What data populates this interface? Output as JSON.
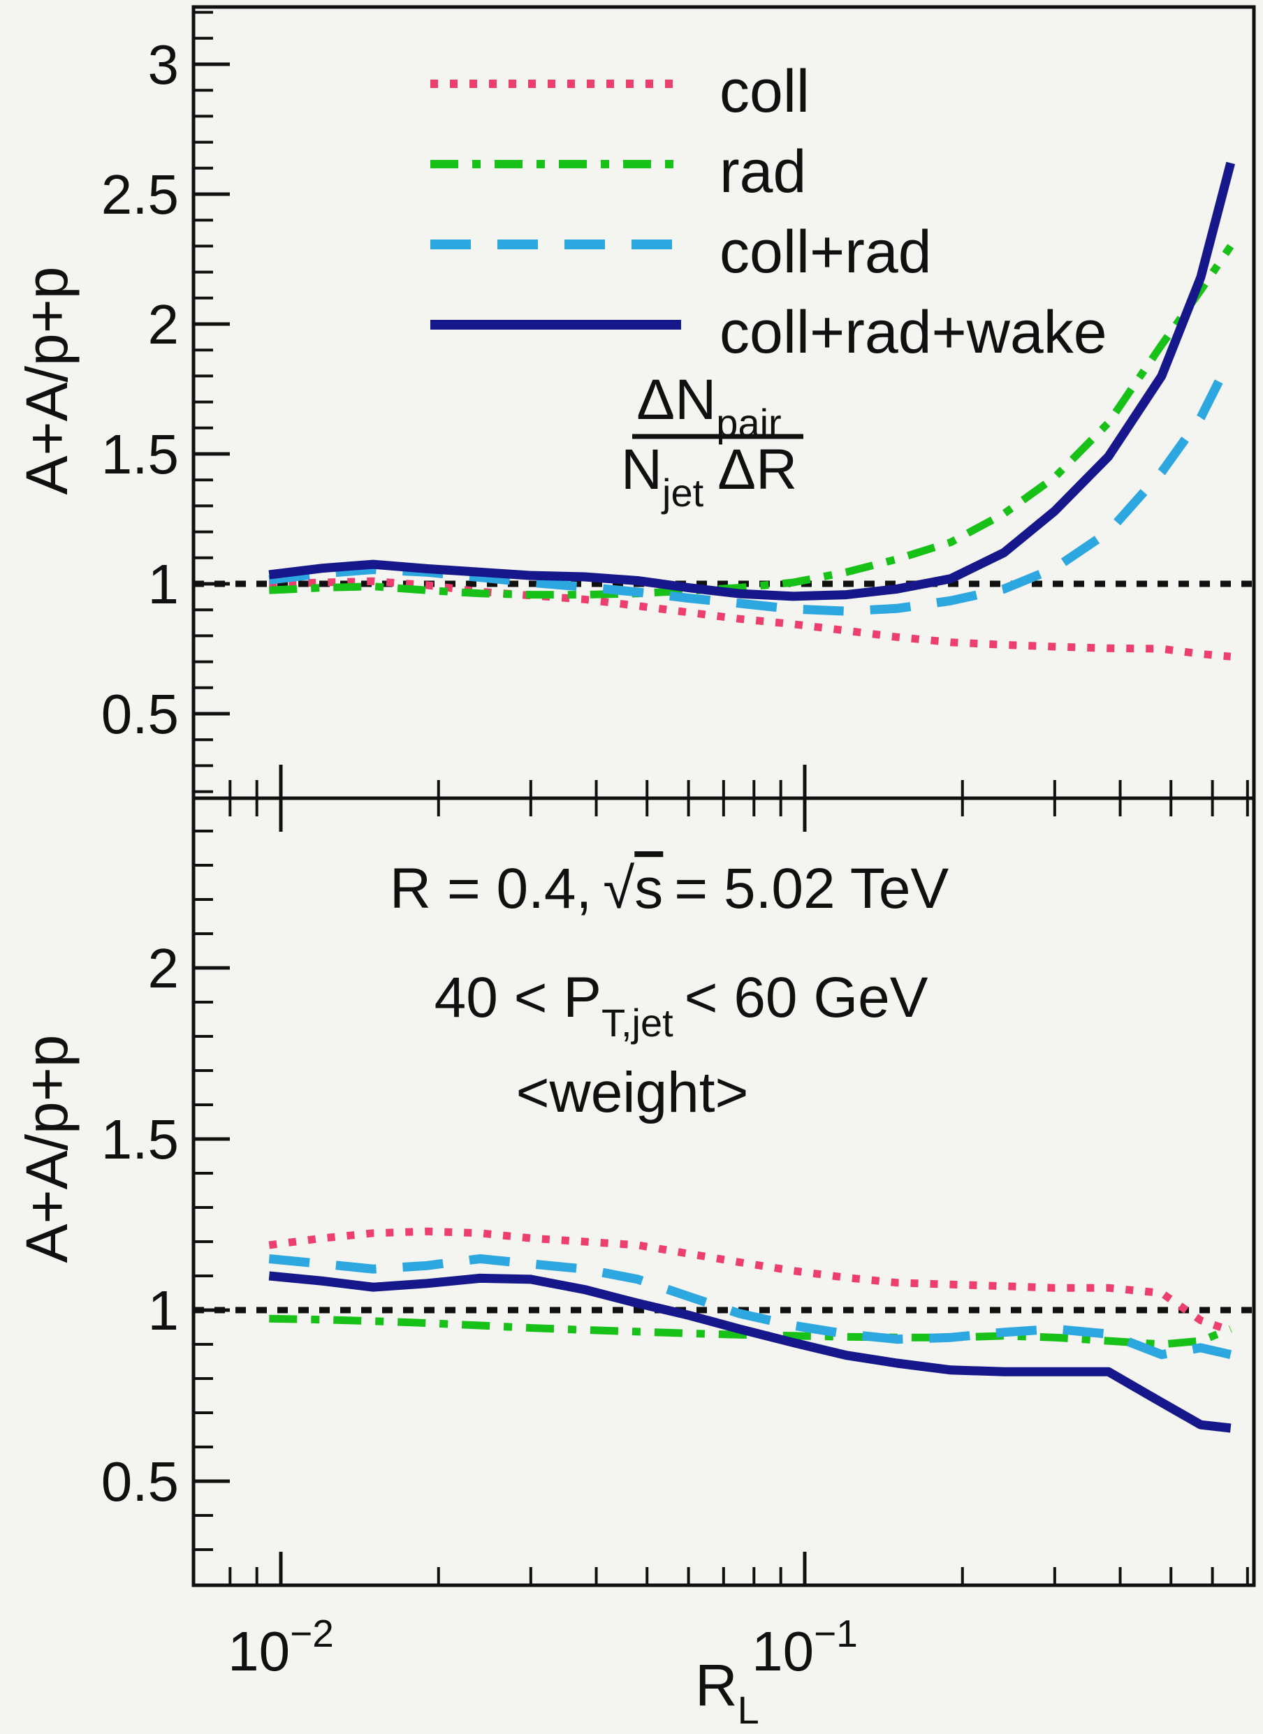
{
  "chart_data": [
    {
      "type": "line",
      "panel": "top",
      "x_scale": "log",
      "xlim": [
        0.0072,
        0.72
      ],
      "ylim": [
        0.175,
        3.22
      ],
      "xlabel": "R_L",
      "ylabel": "A+A/p+p",
      "grid": false,
      "legend_position": "top-center-inside",
      "reference_line_y": 1,
      "y_ticks_major": [
        0.5,
        1,
        1.5,
        2,
        2.5,
        3
      ],
      "y_tick_labels": [
        "0.5",
        "1",
        "1.5",
        "2",
        "2.5",
        "3"
      ],
      "y_minor_step": 0.1,
      "x_ticks_major": [
        0.01,
        0.1
      ],
      "x": [
        0.0095,
        0.012,
        0.015,
        0.019,
        0.024,
        0.03,
        0.038,
        0.048,
        0.06,
        0.075,
        0.095,
        0.12,
        0.15,
        0.19,
        0.24,
        0.3,
        0.38,
        0.48,
        0.57,
        0.65
      ],
      "series": [
        {
          "name": "coll",
          "style": "dotted",
          "color": "#ec3f6e",
          "values": [
            1.0,
            1.005,
            1.01,
            0.995,
            0.97,
            0.955,
            0.94,
            0.915,
            0.89,
            0.865,
            0.845,
            0.82,
            0.795,
            0.775,
            0.765,
            0.758,
            0.752,
            0.75,
            0.73,
            0.72
          ]
        },
        {
          "name": "rad",
          "style": "dash-dot",
          "color": "#17c117",
          "values": [
            0.975,
            0.985,
            0.99,
            0.975,
            0.963,
            0.958,
            0.958,
            0.963,
            0.973,
            0.985,
            1.005,
            1.045,
            1.095,
            1.16,
            1.27,
            1.41,
            1.62,
            1.92,
            2.13,
            2.3
          ]
        },
        {
          "name": "coll+rad",
          "style": "dashed",
          "color": "#2da7e0",
          "values": [
            1.015,
            1.04,
            1.055,
            1.045,
            1.025,
            1.005,
            0.988,
            0.968,
            0.945,
            0.925,
            0.903,
            0.895,
            0.905,
            0.935,
            0.98,
            1.06,
            1.2,
            1.43,
            1.64,
            1.87
          ]
        },
        {
          "name": "coll+rad+wake",
          "style": "solid",
          "color": "#17178c",
          "values": [
            1.035,
            1.06,
            1.075,
            1.058,
            1.045,
            1.032,
            1.027,
            1.012,
            0.985,
            0.962,
            0.952,
            0.958,
            0.98,
            1.02,
            1.12,
            1.28,
            1.49,
            1.8,
            2.18,
            2.62
          ]
        }
      ],
      "annotation_formula": "ΔN_pair / (N_jet ΔR)"
    },
    {
      "type": "line",
      "panel": "bottom",
      "x_scale": "log",
      "xlim": [
        0.0072,
        0.72
      ],
      "ylim": [
        0.196,
        2.496
      ],
      "xlabel": "R_L",
      "ylabel": "A+A/p+p",
      "grid": false,
      "reference_line_y": 1,
      "y_ticks_major": [
        0.5,
        1,
        1.5,
        2
      ],
      "y_tick_labels": [
        "0.5",
        "1",
        "1.5",
        "2"
      ],
      "y_minor_step": 0.1,
      "x_ticks_major": [
        0.01,
        0.1
      ],
      "annotations": [
        "R = 0.4, √s = 5.02 TeV",
        "40 < P_T,jet < 60 GeV",
        "<weight>"
      ],
      "x": [
        0.0095,
        0.012,
        0.015,
        0.019,
        0.024,
        0.03,
        0.038,
        0.048,
        0.06,
        0.075,
        0.095,
        0.12,
        0.15,
        0.19,
        0.24,
        0.3,
        0.38,
        0.48,
        0.57,
        0.65
      ],
      "series": [
        {
          "name": "coll",
          "style": "dotted",
          "color": "#ec3f6e",
          "values": [
            1.19,
            1.21,
            1.225,
            1.23,
            1.225,
            1.21,
            1.2,
            1.19,
            1.165,
            1.14,
            1.115,
            1.095,
            1.08,
            1.075,
            1.07,
            1.065,
            1.065,
            1.05,
            0.97,
            0.94
          ]
        },
        {
          "name": "rad",
          "style": "dash-dot",
          "color": "#17c117",
          "values": [
            0.975,
            0.972,
            0.968,
            0.962,
            0.955,
            0.948,
            0.942,
            0.937,
            0.932,
            0.928,
            0.925,
            0.922,
            0.92,
            0.92,
            0.925,
            0.92,
            0.91,
            0.9,
            0.91,
            0.945
          ]
        },
        {
          "name": "coll+rad",
          "style": "dashed",
          "color": "#2da7e0",
          "values": [
            1.15,
            1.135,
            1.12,
            1.13,
            1.15,
            1.135,
            1.12,
            1.09,
            1.04,
            0.99,
            0.955,
            0.93,
            0.915,
            0.92,
            0.935,
            0.945,
            0.93,
            0.87,
            0.89,
            0.87
          ]
        },
        {
          "name": "coll+rad+wake",
          "style": "solid",
          "color": "#17178c",
          "values": [
            1.1,
            1.085,
            1.067,
            1.078,
            1.093,
            1.09,
            1.06,
            1.02,
            0.985,
            0.945,
            0.905,
            0.868,
            0.845,
            0.825,
            0.82,
            0.82,
            0.82,
            0.73,
            0.665,
            0.655
          ]
        }
      ]
    }
  ],
  "legend": {
    "items": [
      "coll",
      "rad",
      "coll+rad",
      "coll+rad+wake"
    ]
  },
  "formula": {
    "numerator_main": "ΔN",
    "numerator_sub": "pair",
    "denominator_main": "N",
    "denominator_sub": "jet",
    "denominator_tail": "ΔR"
  },
  "annotations": {
    "line1_part1": "R = 0.4,",
    "line1_sqrt": "√",
    "line1_sqrt_arg": "s",
    "line1_part2": "= 5.02 TeV",
    "line2_part1": "40 < P",
    "line2_sub": "T,jet",
    "line2_part2": "< 60 GeV",
    "line3": "<weight>"
  },
  "axis": {
    "y_title_top": "A+A/p+p",
    "y_title_bottom": "A+A/p+p",
    "x_title_main": "R",
    "x_title_sub": "L",
    "x_tick_labels": [
      {
        "base": "10",
        "exp": "−2",
        "value": 0.01
      },
      {
        "base": "10",
        "exp": "−1",
        "value": 0.1
      }
    ]
  },
  "colors": {
    "background": "#f4f4f1",
    "axis": "#101010",
    "reference_line": "#101010"
  }
}
